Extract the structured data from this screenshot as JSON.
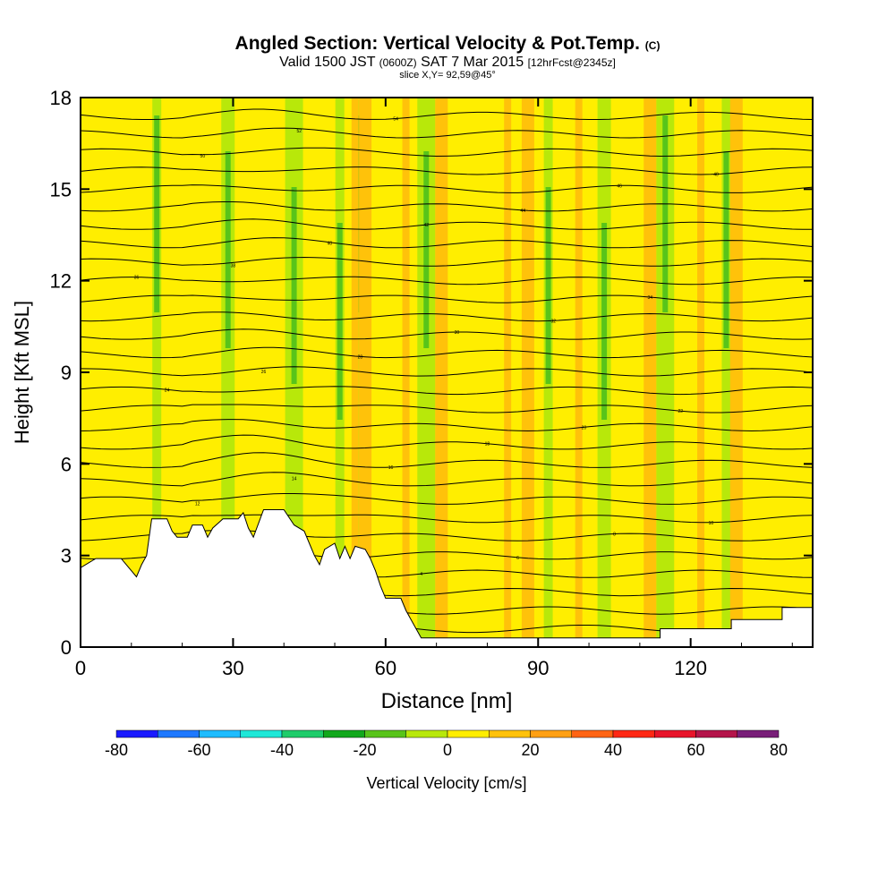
{
  "title": {
    "main": "Angled Section: Vertical Velocity & Pot.Temp.",
    "main_unit": "(C)",
    "valid_prefix": "Valid 1500 JST",
    "valid_utc": "(0600Z)",
    "valid_date": "SAT 7 Mar 2015",
    "forecast": "[12hrFcst@2345z]",
    "slice": "slice X,Y= 92,59@45°"
  },
  "chart_data": {
    "type": "heatmap",
    "xlabel": "Distance [nm]",
    "ylabel": "Height [Kft MSL]",
    "xlim": [
      0,
      144
    ],
    "ylim": [
      0,
      18
    ],
    "x_ticks": [
      0,
      30,
      60,
      90,
      120
    ],
    "y_ticks": [
      0,
      3,
      6,
      9,
      12,
      15,
      18
    ],
    "colorbar": {
      "label": "Vertical Velocity [cm/s]",
      "ticks": [
        -80,
        -60,
        -40,
        -20,
        0,
        20,
        40,
        60,
        80
      ],
      "levels": [
        -80,
        -70,
        -60,
        -50,
        -40,
        -30,
        -20,
        -10,
        0,
        10,
        20,
        30,
        40,
        50,
        60,
        70,
        80
      ],
      "colors": [
        "#1a1aff",
        "#1e78ff",
        "#1ebcff",
        "#1ee8d8",
        "#1ecc6a",
        "#12a81c",
        "#58c41a",
        "#b8e80a",
        "#ffee00",
        "#ffc20a",
        "#ffa014",
        "#ff6414",
        "#ff2814",
        "#e8142a",
        "#b4144a",
        "#781e78"
      ]
    },
    "background_level": 0,
    "updraft_streaks_x": [
      54,
      56,
      64,
      71,
      84,
      88,
      98,
      112,
      122,
      129
    ],
    "downdraft_streaks_x": [
      15,
      29,
      42,
      51,
      55,
      68,
      92,
      103,
      115,
      127
    ],
    "terrain_height_kft": [
      [
        0,
        2.6
      ],
      [
        3,
        2.9
      ],
      [
        8,
        2.9
      ],
      [
        10,
        2.5
      ],
      [
        11,
        2.3
      ],
      [
        12,
        2.7
      ],
      [
        13,
        3.0
      ],
      [
        14,
        4.2
      ],
      [
        17,
        4.2
      ],
      [
        18,
        3.8
      ],
      [
        19,
        3.6
      ],
      [
        21,
        3.6
      ],
      [
        22,
        4.0
      ],
      [
        24,
        4.0
      ],
      [
        25,
        3.6
      ],
      [
        26,
        3.9
      ],
      [
        28,
        4.2
      ],
      [
        31,
        4.2
      ],
      [
        32,
        4.4
      ],
      [
        33,
        3.9
      ],
      [
        34,
        3.6
      ],
      [
        36,
        4.5
      ],
      [
        40,
        4.5
      ],
      [
        42,
        4.0
      ],
      [
        44,
        3.8
      ],
      [
        45,
        3.4
      ],
      [
        46,
        3.0
      ],
      [
        47,
        2.7
      ],
      [
        48,
        3.2
      ],
      [
        50,
        3.4
      ],
      [
        51,
        2.9
      ],
      [
        52,
        3.3
      ],
      [
        53,
        2.9
      ],
      [
        54,
        3.3
      ],
      [
        56,
        3.2
      ],
      [
        57,
        2.9
      ],
      [
        58,
        2.5
      ],
      [
        59,
        2.0
      ],
      [
        60,
        1.6
      ],
      [
        63,
        1.6
      ],
      [
        64,
        1.2
      ],
      [
        65,
        0.9
      ],
      [
        66,
        0.6
      ],
      [
        67,
        0.3
      ],
      [
        114,
        0.3
      ],
      [
        114,
        0.6
      ],
      [
        128,
        0.6
      ],
      [
        128,
        0.9
      ],
      [
        138,
        0.9
      ],
      [
        138,
        1.3
      ],
      [
        144,
        1.3
      ]
    ],
    "theta_isolines": {
      "base_y_kft": [
        0.6,
        1.2,
        1.8,
        2.4,
        3.0,
        3.6,
        4.2,
        4.8,
        5.4,
        6.0,
        6.6,
        7.2,
        7.8,
        8.4,
        9.0,
        9.6,
        10.2,
        10.8,
        11.4,
        12.0,
        12.6,
        13.2,
        13.8,
        14.4,
        15.0,
        15.6,
        16.2,
        16.8,
        17.4
      ],
      "labels": [
        "-5",
        "-2",
        "1",
        "4",
        "6",
        "8",
        "10",
        "12",
        "14",
        "16",
        "18",
        "20",
        "22",
        "24",
        "26",
        "28",
        "30",
        "32",
        "34",
        "36",
        "38",
        "40",
        "42",
        "44",
        "46",
        "48",
        "50",
        "52",
        "54"
      ]
    }
  }
}
